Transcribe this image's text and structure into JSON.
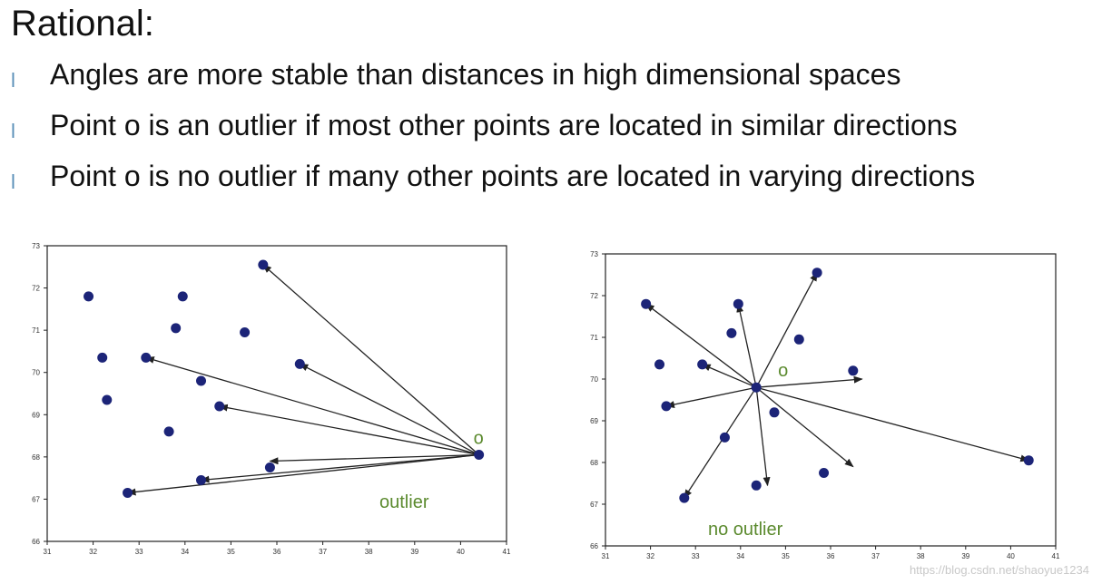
{
  "slide": {
    "title": "Rational:",
    "bullets": [
      "Angles are more stable than distances in high dimensional spaces",
      "Point o is an outlier if most other points are located in similar directions",
      "Point o is no outlier if many other points are located in varying directions"
    ],
    "bullet_marker": "l"
  },
  "watermark": "https://blog.csdn.net/shaoyue1234",
  "chart_data": [
    {
      "type": "scatter",
      "title": "",
      "xlabel": "",
      "ylabel": "",
      "xlim": [
        31,
        41
      ],
      "ylim": [
        66,
        73
      ],
      "x_ticks": [
        31,
        32,
        33,
        34,
        35,
        36,
        37,
        38,
        39,
        40,
        41
      ],
      "y_ticks": [
        66,
        67,
        68,
        69,
        70,
        71,
        72,
        73
      ],
      "grid": false,
      "points": [
        {
          "x": 31.9,
          "y": 71.8
        },
        {
          "x": 32.2,
          "y": 70.35
        },
        {
          "x": 32.3,
          "y": 69.35
        },
        {
          "x": 32.75,
          "y": 67.15
        },
        {
          "x": 33.15,
          "y": 70.35
        },
        {
          "x": 33.65,
          "y": 68.6
        },
        {
          "x": 33.8,
          "y": 71.05
        },
        {
          "x": 33.95,
          "y": 71.8
        },
        {
          "x": 34.35,
          "y": 69.8
        },
        {
          "x": 34.35,
          "y": 67.45
        },
        {
          "x": 34.75,
          "y": 69.2
        },
        {
          "x": 35.3,
          "y": 70.95
        },
        {
          "x": 35.7,
          "y": 72.55
        },
        {
          "x": 35.85,
          "y": 67.75
        },
        {
          "x": 36.5,
          "y": 70.2
        },
        {
          "x": 40.4,
          "y": 68.05
        }
      ],
      "center_point": {
        "label": "o",
        "x": 40.4,
        "y": 68.05
      },
      "arrows_to": [
        {
          "x": 35.7,
          "y": 72.55
        },
        {
          "x": 36.5,
          "y": 70.2
        },
        {
          "x": 33.15,
          "y": 70.35
        },
        {
          "x": 34.75,
          "y": 69.2
        },
        {
          "x": 35.85,
          "y": 67.9
        },
        {
          "x": 34.35,
          "y": 67.45
        },
        {
          "x": 32.75,
          "y": 67.15
        }
      ],
      "annotation": "outlier"
    },
    {
      "type": "scatter",
      "title": "",
      "xlabel": "",
      "ylabel": "",
      "xlim": [
        31,
        41
      ],
      "ylim": [
        66,
        73
      ],
      "x_ticks": [
        31,
        32,
        33,
        34,
        35,
        36,
        37,
        38,
        39,
        40,
        41
      ],
      "y_ticks": [
        66,
        67,
        68,
        69,
        70,
        71,
        72,
        73
      ],
      "grid": false,
      "points": [
        {
          "x": 31.9,
          "y": 71.8
        },
        {
          "x": 32.2,
          "y": 70.35
        },
        {
          "x": 32.35,
          "y": 69.35
        },
        {
          "x": 32.75,
          "y": 67.15
        },
        {
          "x": 33.15,
          "y": 70.35
        },
        {
          "x": 33.65,
          "y": 68.6
        },
        {
          "x": 33.8,
          "y": 71.1
        },
        {
          "x": 33.95,
          "y": 71.8
        },
        {
          "x": 34.35,
          "y": 69.8
        },
        {
          "x": 34.35,
          "y": 67.45
        },
        {
          "x": 34.75,
          "y": 69.2
        },
        {
          "x": 35.3,
          "y": 70.95
        },
        {
          "x": 35.7,
          "y": 72.55
        },
        {
          "x": 35.85,
          "y": 67.75
        },
        {
          "x": 36.5,
          "y": 70.2
        },
        {
          "x": 40.4,
          "y": 68.05
        }
      ],
      "center_point": {
        "label": "o",
        "x": 34.35,
        "y": 69.8
      },
      "arrows_to": [
        {
          "x": 31.9,
          "y": 71.8
        },
        {
          "x": 33.95,
          "y": 71.8
        },
        {
          "x": 35.7,
          "y": 72.55
        },
        {
          "x": 33.15,
          "y": 70.35
        },
        {
          "x": 32.35,
          "y": 69.35
        },
        {
          "x": 36.7,
          "y": 70.0
        },
        {
          "x": 40.4,
          "y": 68.05
        },
        {
          "x": 36.5,
          "y": 67.9
        },
        {
          "x": 34.6,
          "y": 67.45
        },
        {
          "x": 32.75,
          "y": 67.15
        }
      ],
      "annotation": "no outlier"
    }
  ]
}
